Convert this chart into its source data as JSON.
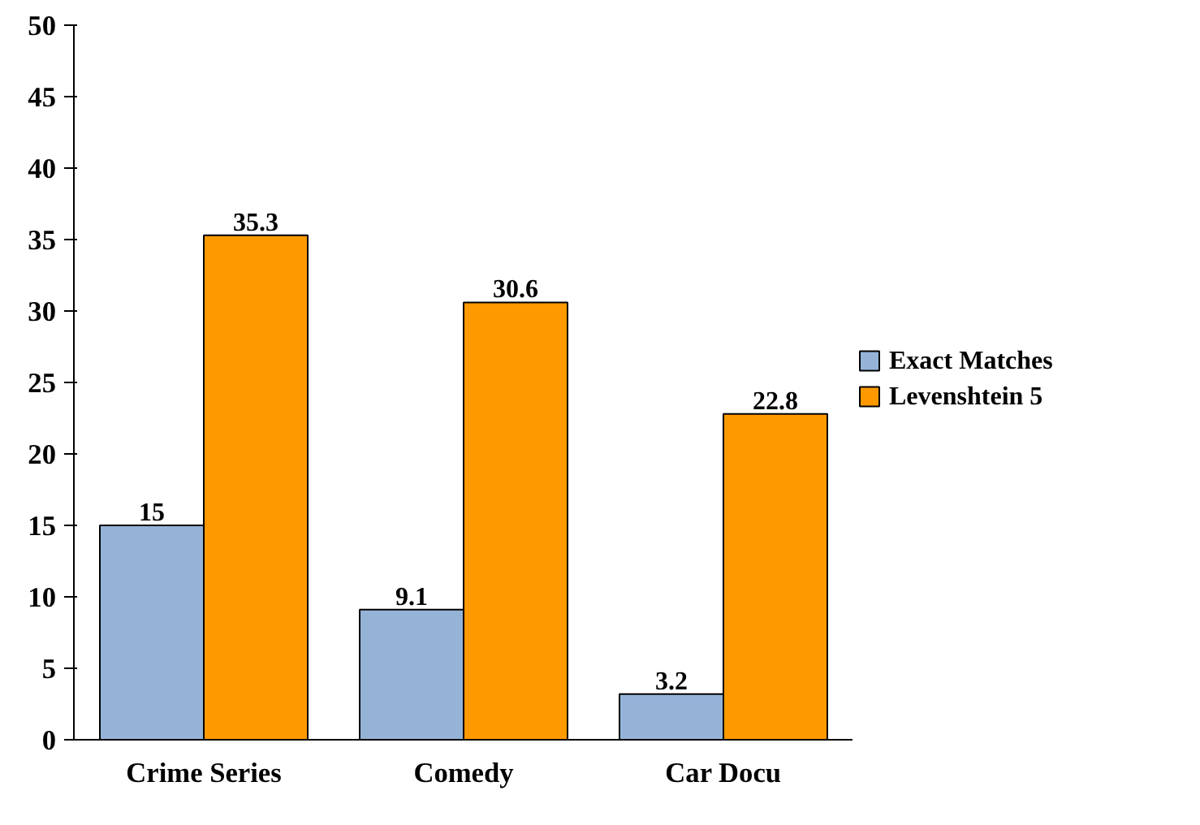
{
  "chart_data": {
    "type": "bar",
    "categories": [
      "Crime Series",
      "Comedy",
      "Car Docu"
    ],
    "series": [
      {
        "name": "Exact Matches",
        "color": "#95b3d7",
        "values": [
          15,
          9.1,
          3.2
        ]
      },
      {
        "name": "Levenshtein 5",
        "color": "#ff9900",
        "values": [
          35.3,
          30.6,
          22.8
        ]
      }
    ],
    "ylim": [
      0,
      50
    ],
    "yticks": [
      0,
      5,
      10,
      15,
      20,
      25,
      30,
      35,
      40,
      45,
      50
    ],
    "data_labels": true,
    "legend": "right",
    "grid": false
  }
}
